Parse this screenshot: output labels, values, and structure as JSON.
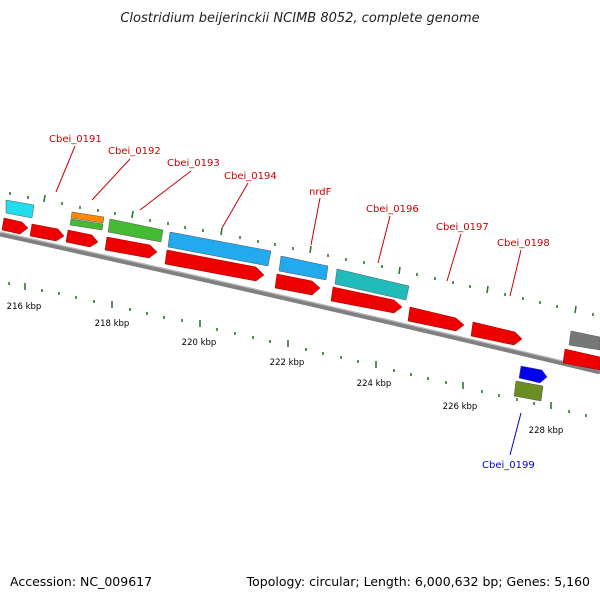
{
  "title": "Clostridium beijerinckii NCIMB 8052, complete genome",
  "accession": "Accession: NC_009617",
  "topology": "Topology: circular; Length: 6,000,632 bp; Genes: 5,160",
  "colors": {
    "backbone": "#808080",
    "cds_forward": "#ee0000",
    "label_red": "#cc0000",
    "label_blue": "#0000cc",
    "tick": "#2a7a2a",
    "cyan": "#22ccdd",
    "sky_blue": "#22aaee",
    "green": "#44bb33",
    "orange": "#ff8800",
    "teal": "#22bbbb",
    "blue": "#0000ee",
    "olive": "#6b8e23",
    "gray": "#777777"
  },
  "gene_labels": [
    "Cbei_0191",
    "Cbei_0192",
    "Cbei_0193",
    "Cbei_0194",
    "nrdF",
    "Cbei_0196",
    "Cbei_0197",
    "Cbei_0198",
    "Cbei_0199"
  ],
  "kbp_labels": [
    "216 kbp",
    "218 kbp",
    "220 kbp",
    "222 kbp",
    "224 kbp",
    "226 kbp",
    "228 kbp"
  ]
}
